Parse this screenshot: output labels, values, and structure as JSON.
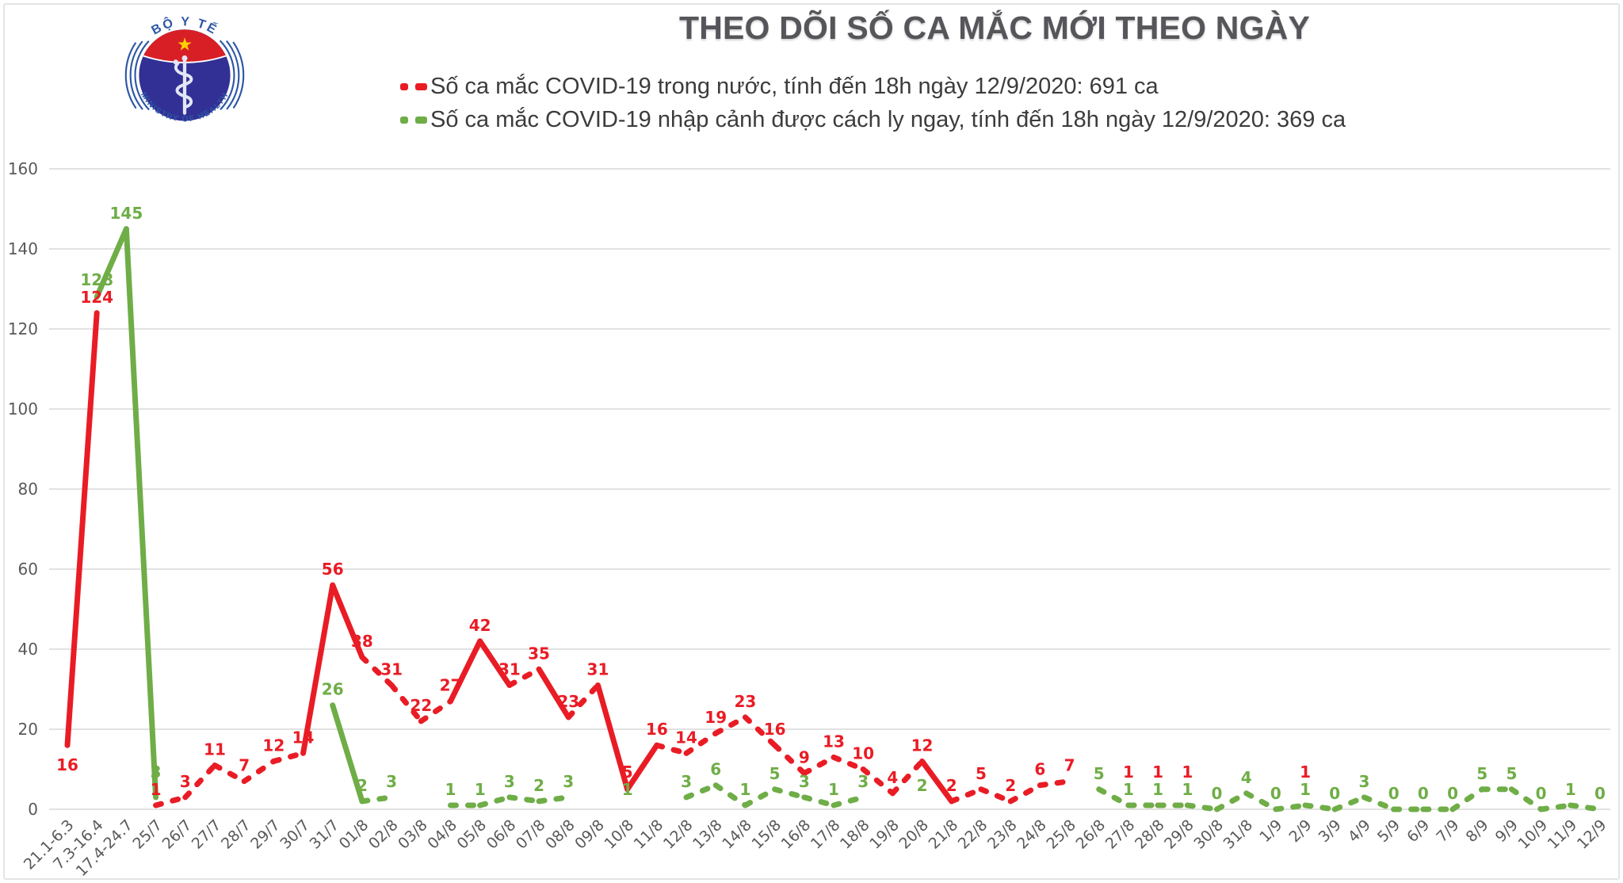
{
  "header": {
    "logo": {
      "title": "BỘ Y TẾ",
      "subtitle": "MINISTRY OF HEALTH"
    },
    "title": "THEO DÕI SỐ CA MẮC MỚI THEO NGÀY",
    "legend": [
      {
        "label": "Số ca mắc COVID-19 trong nước, tính đến 18h ngày 12/9/2020: 691 ca",
        "color": "#e91c25"
      },
      {
        "label": "Số ca mắc COVID-19 nhập cảnh được cách ly ngay, tính đến 18h ngày 12/9/2020: 369 ca",
        "color": "#6fad47"
      }
    ]
  },
  "theme": {
    "red": "#e91c25",
    "green": "#6fad47",
    "navy": "#323095",
    "logo_red": "#d81f26",
    "gold": "#ffd105",
    "arc_blue": "#2d57a5",
    "text_gray": "#595959",
    "grid": "#d9d9d9",
    "title_gray": "#55555a",
    "legend_text": "#3c3c3c"
  },
  "chart_data": {
    "type": "line",
    "title": "THEO DÕI SỐ CA MẮC MỚI THEO NGÀY",
    "xlabel": "",
    "ylabel": "",
    "ylim": [
      0,
      160
    ],
    "y_ticks": [
      0,
      20,
      40,
      60,
      80,
      100,
      120,
      140,
      160
    ],
    "grid": "horizontal",
    "line_style": "dashed",
    "legend_position": "top",
    "x_label_rotation": -45,
    "categories": [
      "21.1-6.3",
      "7.3-16.4",
      "17.4-24.7",
      "25/7",
      "26/7",
      "27/7",
      "28/7",
      "29/7",
      "30/7",
      "31/7",
      "01/8",
      "02/8",
      "03/8",
      "04/8",
      "05/8",
      "06/8",
      "07/8",
      "08/8",
      "09/8",
      "10/8",
      "11/8",
      "12/8",
      "13/8",
      "14/8",
      "15/8",
      "16/8",
      "17/8",
      "18/8",
      "19/8",
      "20/8",
      "21/8",
      "22/8",
      "23/8",
      "24/8",
      "25/8",
      "26/8",
      "27/8",
      "28/8",
      "29/8",
      "30/8",
      "31/8",
      "1/9",
      "2/9",
      "3/9",
      "4/9",
      "5/9",
      "6/9",
      "7/9",
      "8/9",
      "9/9",
      "10/9",
      "11/9",
      "12/9"
    ],
    "series": [
      {
        "name": "Số ca mắc COVID-19 trong nước",
        "color": "#e91c25",
        "total_label": "691 ca",
        "values": [
          16,
          124,
          null,
          1,
          3,
          11,
          7,
          12,
          14,
          56,
          38,
          31,
          22,
          27,
          42,
          31,
          35,
          23,
          31,
          5,
          16,
          14,
          19,
          23,
          16,
          9,
          13,
          10,
          4,
          12,
          2,
          5,
          2,
          6,
          7,
          null,
          1,
          1,
          1,
          null,
          null,
          null,
          1,
          null,
          null,
          null,
          null,
          null,
          null,
          null,
          null,
          null,
          null
        ]
      },
      {
        "name": "Số ca mắc COVID-19 nhập cảnh được cách ly ngay",
        "color": "#6fad47",
        "total_label": "369 ca",
        "values": [
          null,
          128,
          145,
          3,
          null,
          null,
          null,
          null,
          null,
          26,
          2,
          3,
          null,
          1,
          1,
          3,
          2,
          3,
          null,
          1,
          null,
          3,
          6,
          1,
          5,
          3,
          1,
          3,
          null,
          2,
          null,
          null,
          null,
          null,
          null,
          5,
          1,
          1,
          1,
          0,
          4,
          0,
          1,
          0,
          3,
          0,
          0,
          0,
          5,
          5,
          0,
          1,
          0
        ]
      }
    ]
  }
}
